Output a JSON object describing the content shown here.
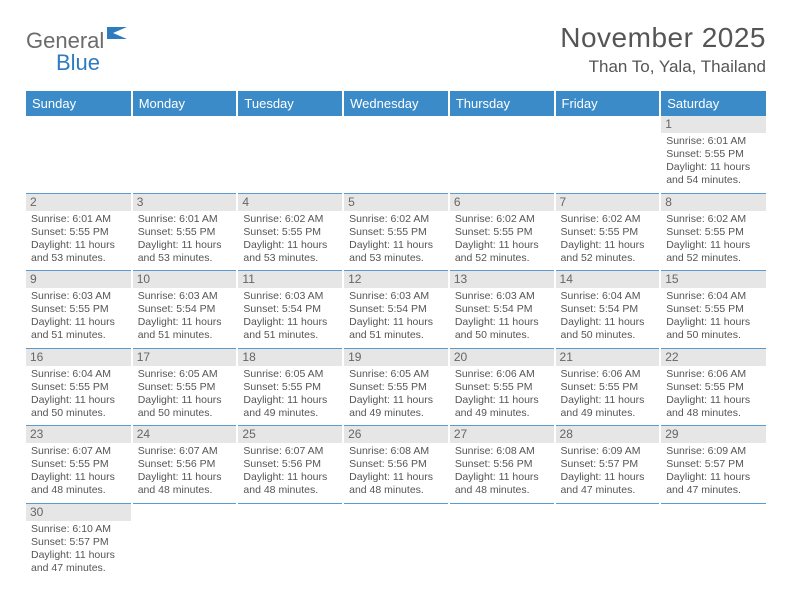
{
  "logo": {
    "general": "General",
    "blue": "Blue"
  },
  "title": "November 2025",
  "location": "Than To, Yala, Thailand",
  "colors": {
    "header_bg": "#3b8bc9",
    "header_text": "#ffffff",
    "daynum_bg": "#e6e6e6",
    "border": "#5a9bd4",
    "text": "#555555",
    "logo_blue": "#2f7bbf"
  },
  "weekdays": [
    "Sunday",
    "Monday",
    "Tuesday",
    "Wednesday",
    "Thursday",
    "Friday",
    "Saturday"
  ],
  "weeks": [
    [
      null,
      null,
      null,
      null,
      null,
      null,
      {
        "n": "1",
        "sr": "Sunrise: 6:01 AM",
        "ss": "Sunset: 5:55 PM",
        "dl": "Daylight: 11 hours and 54 minutes."
      }
    ],
    [
      {
        "n": "2",
        "sr": "Sunrise: 6:01 AM",
        "ss": "Sunset: 5:55 PM",
        "dl": "Daylight: 11 hours and 53 minutes."
      },
      {
        "n": "3",
        "sr": "Sunrise: 6:01 AM",
        "ss": "Sunset: 5:55 PM",
        "dl": "Daylight: 11 hours and 53 minutes."
      },
      {
        "n": "4",
        "sr": "Sunrise: 6:02 AM",
        "ss": "Sunset: 5:55 PM",
        "dl": "Daylight: 11 hours and 53 minutes."
      },
      {
        "n": "5",
        "sr": "Sunrise: 6:02 AM",
        "ss": "Sunset: 5:55 PM",
        "dl": "Daylight: 11 hours and 53 minutes."
      },
      {
        "n": "6",
        "sr": "Sunrise: 6:02 AM",
        "ss": "Sunset: 5:55 PM",
        "dl": "Daylight: 11 hours and 52 minutes."
      },
      {
        "n": "7",
        "sr": "Sunrise: 6:02 AM",
        "ss": "Sunset: 5:55 PM",
        "dl": "Daylight: 11 hours and 52 minutes."
      },
      {
        "n": "8",
        "sr": "Sunrise: 6:02 AM",
        "ss": "Sunset: 5:55 PM",
        "dl": "Daylight: 11 hours and 52 minutes."
      }
    ],
    [
      {
        "n": "9",
        "sr": "Sunrise: 6:03 AM",
        "ss": "Sunset: 5:55 PM",
        "dl": "Daylight: 11 hours and 51 minutes."
      },
      {
        "n": "10",
        "sr": "Sunrise: 6:03 AM",
        "ss": "Sunset: 5:54 PM",
        "dl": "Daylight: 11 hours and 51 minutes."
      },
      {
        "n": "11",
        "sr": "Sunrise: 6:03 AM",
        "ss": "Sunset: 5:54 PM",
        "dl": "Daylight: 11 hours and 51 minutes."
      },
      {
        "n": "12",
        "sr": "Sunrise: 6:03 AM",
        "ss": "Sunset: 5:54 PM",
        "dl": "Daylight: 11 hours and 51 minutes."
      },
      {
        "n": "13",
        "sr": "Sunrise: 6:03 AM",
        "ss": "Sunset: 5:54 PM",
        "dl": "Daylight: 11 hours and 50 minutes."
      },
      {
        "n": "14",
        "sr": "Sunrise: 6:04 AM",
        "ss": "Sunset: 5:54 PM",
        "dl": "Daylight: 11 hours and 50 minutes."
      },
      {
        "n": "15",
        "sr": "Sunrise: 6:04 AM",
        "ss": "Sunset: 5:55 PM",
        "dl": "Daylight: 11 hours and 50 minutes."
      }
    ],
    [
      {
        "n": "16",
        "sr": "Sunrise: 6:04 AM",
        "ss": "Sunset: 5:55 PM",
        "dl": "Daylight: 11 hours and 50 minutes."
      },
      {
        "n": "17",
        "sr": "Sunrise: 6:05 AM",
        "ss": "Sunset: 5:55 PM",
        "dl": "Daylight: 11 hours and 50 minutes."
      },
      {
        "n": "18",
        "sr": "Sunrise: 6:05 AM",
        "ss": "Sunset: 5:55 PM",
        "dl": "Daylight: 11 hours and 49 minutes."
      },
      {
        "n": "19",
        "sr": "Sunrise: 6:05 AM",
        "ss": "Sunset: 5:55 PM",
        "dl": "Daylight: 11 hours and 49 minutes."
      },
      {
        "n": "20",
        "sr": "Sunrise: 6:06 AM",
        "ss": "Sunset: 5:55 PM",
        "dl": "Daylight: 11 hours and 49 minutes."
      },
      {
        "n": "21",
        "sr": "Sunrise: 6:06 AM",
        "ss": "Sunset: 5:55 PM",
        "dl": "Daylight: 11 hours and 49 minutes."
      },
      {
        "n": "22",
        "sr": "Sunrise: 6:06 AM",
        "ss": "Sunset: 5:55 PM",
        "dl": "Daylight: 11 hours and 48 minutes."
      }
    ],
    [
      {
        "n": "23",
        "sr": "Sunrise: 6:07 AM",
        "ss": "Sunset: 5:55 PM",
        "dl": "Daylight: 11 hours and 48 minutes."
      },
      {
        "n": "24",
        "sr": "Sunrise: 6:07 AM",
        "ss": "Sunset: 5:56 PM",
        "dl": "Daylight: 11 hours and 48 minutes."
      },
      {
        "n": "25",
        "sr": "Sunrise: 6:07 AM",
        "ss": "Sunset: 5:56 PM",
        "dl": "Daylight: 11 hours and 48 minutes."
      },
      {
        "n": "26",
        "sr": "Sunrise: 6:08 AM",
        "ss": "Sunset: 5:56 PM",
        "dl": "Daylight: 11 hours and 48 minutes."
      },
      {
        "n": "27",
        "sr": "Sunrise: 6:08 AM",
        "ss": "Sunset: 5:56 PM",
        "dl": "Daylight: 11 hours and 48 minutes."
      },
      {
        "n": "28",
        "sr": "Sunrise: 6:09 AM",
        "ss": "Sunset: 5:57 PM",
        "dl": "Daylight: 11 hours and 47 minutes."
      },
      {
        "n": "29",
        "sr": "Sunrise: 6:09 AM",
        "ss": "Sunset: 5:57 PM",
        "dl": "Daylight: 11 hours and 47 minutes."
      }
    ],
    [
      {
        "n": "30",
        "sr": "Sunrise: 6:10 AM",
        "ss": "Sunset: 5:57 PM",
        "dl": "Daylight: 11 hours and 47 minutes."
      },
      null,
      null,
      null,
      null,
      null,
      null
    ]
  ]
}
